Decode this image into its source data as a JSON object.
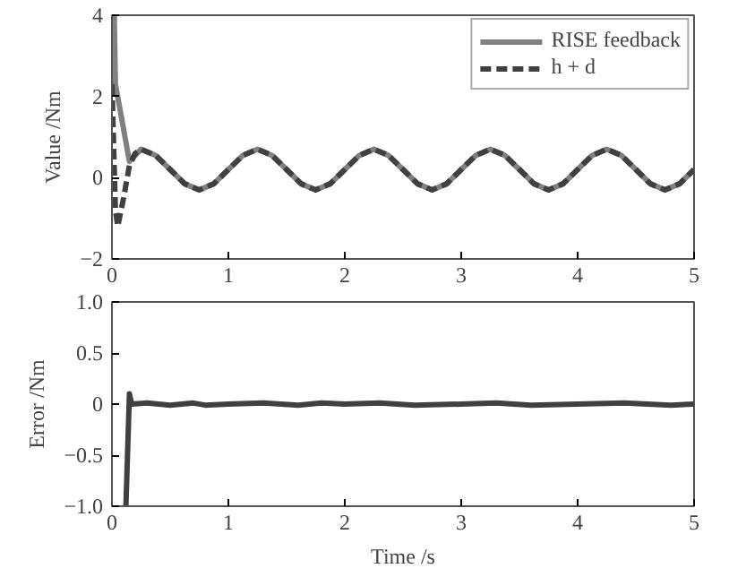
{
  "chart_data": [
    {
      "type": "line",
      "ylabel": "Value /Nm",
      "xlim": [
        0,
        5
      ],
      "xticks": [
        0,
        1,
        2,
        3,
        4,
        5
      ],
      "ylim": [
        -2,
        4
      ],
      "yticks": [
        {
          "value": -2,
          "label": "−2"
        },
        0,
        2,
        4
      ],
      "grid": false,
      "legend": "top right",
      "series": [
        {
          "name": "RISE feedback",
          "color": "#808080",
          "line_style": "solid",
          "x": [
            0,
            0.02,
            0.03,
            0.15,
            0.25,
            0.375,
            0.5,
            0.625,
            0.75,
            0.875,
            1,
            1.125,
            1.25,
            1.375,
            1.5,
            1.625,
            1.75,
            1.875,
            2,
            2.125,
            2.25,
            2.375,
            2.5,
            2.625,
            2.75,
            2.875,
            3,
            3.125,
            3.25,
            3.375,
            3.5,
            3.625,
            3.75,
            3.875,
            4,
            4.125,
            4.25,
            4.375,
            4.5,
            4.625,
            4.75,
            4.875,
            5
          ],
          "values": [
            4,
            4,
            2.3,
            0.4,
            0.7,
            0.55,
            0.2,
            -0.15,
            -0.3,
            -0.15,
            0.2,
            0.55,
            0.7,
            0.55,
            0.2,
            -0.15,
            -0.3,
            -0.15,
            0.2,
            0.55,
            0.7,
            0.55,
            0.2,
            -0.15,
            -0.3,
            -0.15,
            0.2,
            0.55,
            0.7,
            0.55,
            0.2,
            -0.15,
            -0.3,
            -0.15,
            0.2,
            0.55,
            0.7,
            0.55,
            0.2,
            -0.15,
            -0.3,
            -0.15,
            0.2
          ]
        },
        {
          "name": "h + d",
          "color": "#404040",
          "line_style": "dashed",
          "x": [
            0,
            0.03,
            0.05,
            0.1,
            0.15,
            0.2,
            0.25,
            0.375,
            0.5,
            0.625,
            0.75,
            0.875,
            1,
            1.125,
            1.25,
            1.375,
            1.5,
            1.625,
            1.75,
            1.875,
            2,
            2.125,
            2.25,
            2.375,
            2.5,
            2.625,
            2.75,
            2.875,
            3,
            3.125,
            3.25,
            3.375,
            3.5,
            3.625,
            3.75,
            3.875,
            4,
            4.125,
            4.25,
            4.375,
            4.5,
            4.625,
            4.75,
            4.875,
            5
          ],
          "values": [
            2.3,
            -0.8,
            -1.2,
            -0.5,
            0.3,
            0.6,
            0.7,
            0.55,
            0.2,
            -0.15,
            -0.3,
            -0.15,
            0.2,
            0.55,
            0.7,
            0.55,
            0.2,
            -0.15,
            -0.3,
            -0.15,
            0.2,
            0.55,
            0.7,
            0.55,
            0.2,
            -0.15,
            -0.3,
            -0.15,
            0.2,
            0.55,
            0.7,
            0.55,
            0.2,
            -0.15,
            -0.3,
            -0.15,
            0.2,
            0.55,
            0.7,
            0.55,
            0.2,
            -0.15,
            -0.3,
            -0.15,
            0.2
          ]
        }
      ]
    },
    {
      "type": "line",
      "xlabel": "Time /s",
      "ylabel": "Error /Nm",
      "xlim": [
        0,
        5
      ],
      "xticks": [
        0,
        1,
        2,
        3,
        4,
        5
      ],
      "ylim": [
        -1,
        1
      ],
      "yticks": [
        {
          "value": -1,
          "label": "−1.0"
        },
        {
          "value": -0.5,
          "label": "−0.5"
        },
        0,
        0.5,
        {
          "value": 1,
          "label": "1.0"
        }
      ],
      "grid": false,
      "legend": false,
      "series": [
        {
          "color": "#404040",
          "line_style": "solid",
          "x": [
            0.12,
            0.15,
            0.17,
            0.3,
            0.5,
            0.7,
            0.8,
            1,
            1.3,
            1.6,
            1.8,
            2,
            2.3,
            2.6,
            3,
            3.3,
            3.6,
            4,
            4.4,
            4.8,
            5
          ],
          "values": [
            -1,
            0.1,
            0,
            0.01,
            -0.01,
            0.01,
            -0.01,
            0,
            0.01,
            -0.01,
            0.01,
            0,
            0.01,
            -0.01,
            0,
            0.01,
            -0.01,
            0,
            0.01,
            -0.01,
            0
          ]
        }
      ]
    }
  ]
}
